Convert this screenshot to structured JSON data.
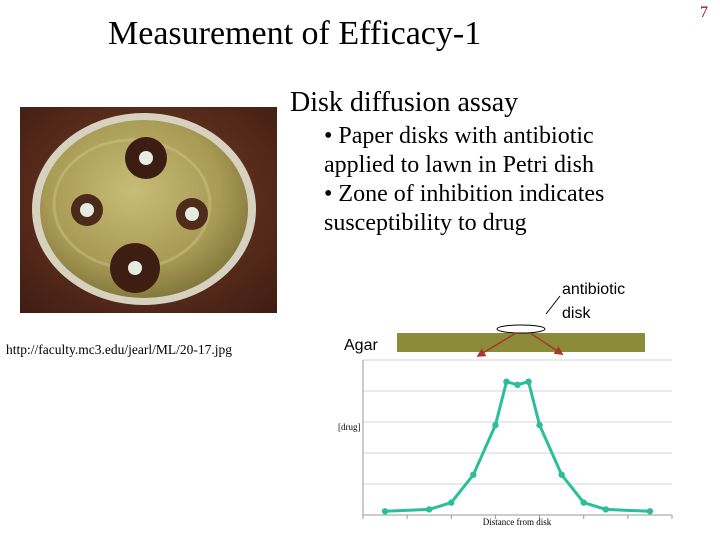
{
  "slide": {
    "title": "Measurement of Efficacy-1",
    "page_number": "7",
    "subtitle": "Disk diffusion assay",
    "bullets": [
      "• Paper disks with antibiotic",
      "applied to lawn in Petri dish",
      "• Zone of inhibition indicates",
      "susceptibility to drug"
    ],
    "image_source": "http://faculty.mc3.edu/jearl/ML/20-17.jpg"
  },
  "diagram": {
    "antibiotic_label": "antibiotic",
    "disk_label": "disk",
    "agar_label": "Agar"
  },
  "chart_data": {
    "type": "line",
    "xlabel": "Distance from disk",
    "ylabel": "[drug]",
    "x": [
      -6,
      -4,
      -3,
      -2,
      -1,
      -0.5,
      0,
      0.5,
      1,
      2,
      3,
      4,
      6
    ],
    "values": [
      0.6,
      0.9,
      2.0,
      6.5,
      14.5,
      21.5,
      21.0,
      21.5,
      14.5,
      6.5,
      2.0,
      0.9,
      0.6
    ],
    "xlim": [
      -7,
      7
    ],
    "ylim": [
      0,
      25
    ],
    "line_color": "#2bbf99",
    "grid": true,
    "legend": "none"
  },
  "colors": {
    "agar": "#8b8b3a",
    "arrow": "#a43a2a",
    "plate_background": "#5a2d1e"
  }
}
